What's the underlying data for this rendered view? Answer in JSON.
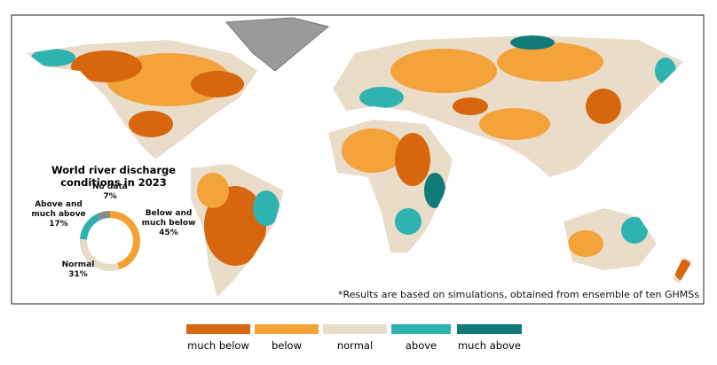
{
  "title": "World river discharge conditions in 2023",
  "note": "*Results are based on simulations, obtained from ensemble of ten GHMSs",
  "chart_data": {
    "type": "donut",
    "categories": [
      "Below and much below",
      "Normal",
      "Above and much above",
      "No data"
    ],
    "values": [
      45,
      31,
      17,
      7
    ],
    "value_labels": [
      "45%",
      "31%",
      "17%",
      "7%"
    ],
    "colors": [
      "#f3a132",
      "#e8dbc6",
      "#2ab0ad",
      "#8a8a8a"
    ]
  },
  "legend": [
    {
      "name": "much below",
      "color": "#d8660f"
    },
    {
      "name": "below",
      "color": "#f4a23a"
    },
    {
      "name": "normal",
      "color": "#e9dcc9"
    },
    {
      "name": "above",
      "color": "#2fb3b0"
    },
    {
      "name": "much above",
      "color": "#0f7a78"
    }
  ]
}
